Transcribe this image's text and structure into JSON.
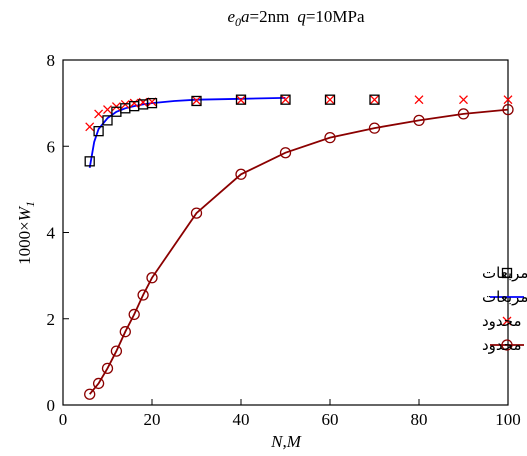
{
  "chart_data": {
    "type": "line",
    "title": "e0a=2nm  q=10MPa",
    "title_parts": {
      "e": "e",
      "sub": "0",
      "a": "a",
      "a_value": "=2nm",
      "q": "q",
      "q_value": "=10MPa"
    },
    "xlabel": "N,M",
    "ylabel_prefix": "1000×",
    "ylabel_var": "W",
    "ylabel_sub": "1",
    "xlim": [
      0,
      100
    ],
    "ylim": [
      0,
      8
    ],
    "xticks": [
      0,
      20,
      40,
      60,
      80,
      100
    ],
    "yticks": [
      0,
      2,
      4,
      6,
      8
    ],
    "grid": false,
    "legend_position": "center-right",
    "colors": {
      "kirchhoff_dq": "#000000",
      "mindlin_dq": "#0000ff",
      "kirchhoff_fd": "#ff0000",
      "mindlin_fd": "#8b0000"
    },
    "series": [
      {
        "key": "kirchhoff_dq",
        "name": "مدل کیرشهف با روش دیفرانسیل مربعات",
        "marker": "square",
        "line": false,
        "x": [
          6,
          8,
          10,
          12,
          14,
          16,
          18,
          20,
          30,
          40,
          50,
          60,
          70
        ],
        "y": [
          5.65,
          6.35,
          6.6,
          6.8,
          6.88,
          6.93,
          6.97,
          7.0,
          7.05,
          7.08,
          7.08,
          7.08,
          7.08
        ]
      },
      {
        "key": "mindlin_dq",
        "name": "مدل میندلین با روش دیفرانسیل مربعات",
        "marker": "none",
        "line": true,
        "x": [
          6,
          7,
          8,
          10,
          12,
          14,
          16,
          18,
          20,
          25,
          30,
          40,
          50
        ],
        "y": [
          5.5,
          6.1,
          6.4,
          6.65,
          6.8,
          6.88,
          6.93,
          6.97,
          7.0,
          7.05,
          7.08,
          7.1,
          7.12
        ]
      },
      {
        "key": "kirchhoff_fd",
        "name": "مدل کیرشهف با روش تفاضلات محدود",
        "marker": "x",
        "line": false,
        "x": [
          6,
          8,
          10,
          12,
          14,
          16,
          18,
          20,
          30,
          40,
          50,
          60,
          70,
          80,
          90,
          100
        ],
        "y": [
          6.45,
          6.75,
          6.85,
          6.92,
          6.97,
          7.0,
          7.02,
          7.03,
          7.06,
          7.07,
          7.08,
          7.08,
          7.08,
          7.08,
          7.08,
          7.08
        ]
      },
      {
        "key": "mindlin_fd",
        "name": "مدل میندلین با روش تفاضلات محدود",
        "marker": "circle",
        "line": true,
        "x": [
          6,
          8,
          10,
          12,
          14,
          16,
          18,
          20,
          30,
          40,
          50,
          60,
          70,
          80,
          90,
          100
        ],
        "y": [
          0.25,
          0.5,
          0.85,
          1.25,
          1.7,
          2.1,
          2.55,
          2.95,
          4.45,
          5.35,
          5.85,
          6.2,
          6.42,
          6.6,
          6.75,
          6.85
        ]
      }
    ]
  }
}
